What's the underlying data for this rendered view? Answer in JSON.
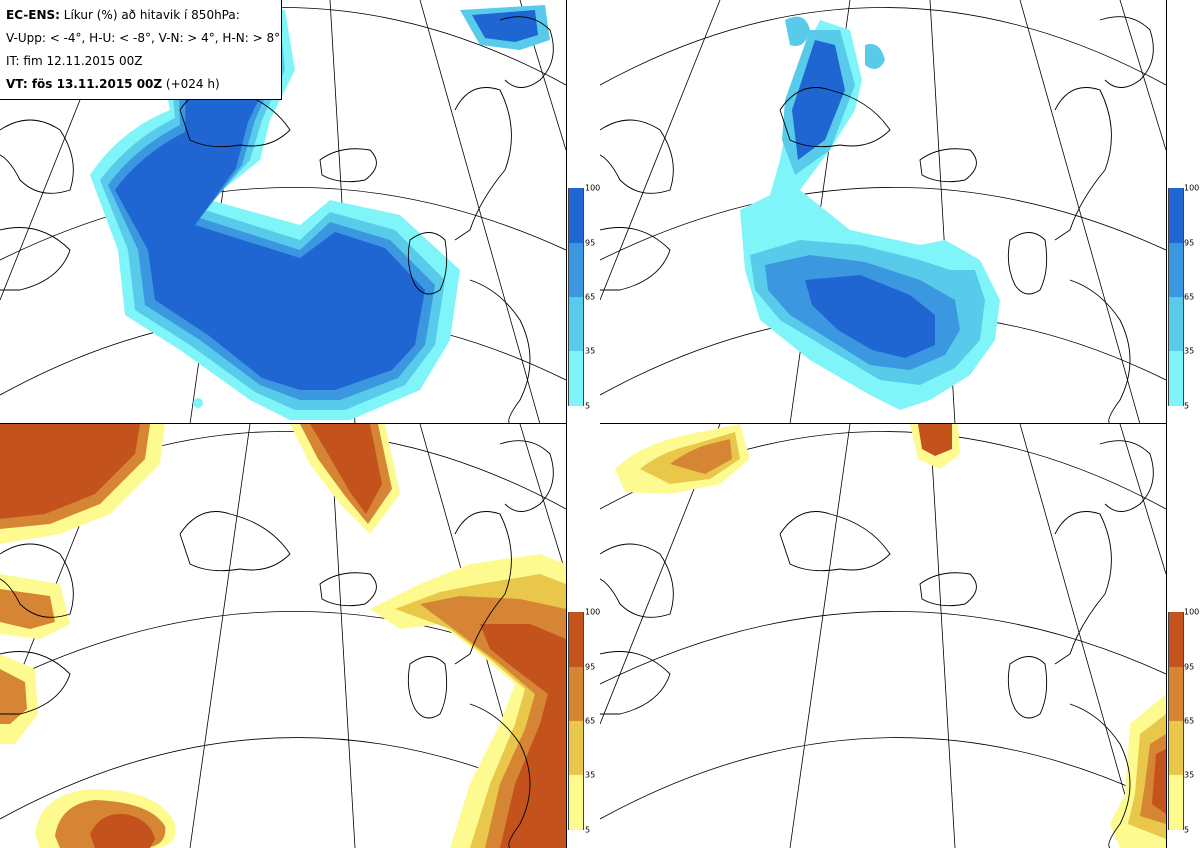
{
  "info": {
    "model": "EC-ENS:",
    "description": "Líkur (%) að hitavik í 850hPa:",
    "thresholds": "V-Upp: < -4°, H-U: < -8°, V-N: > 4°, H-N: > 8°",
    "initial_time": "IT: fim 12.11.2015 00Z",
    "valid_label": "VT:",
    "valid_time": "fös 13.11.2015 00Z",
    "lead": "(+024 h)"
  },
  "colorbar_ticks": [
    "100",
    "95",
    "65",
    "35",
    "5"
  ],
  "colors": {
    "cold": [
      "#7ff5f9",
      "#58cbeb",
      "#3a97e0",
      "#1f66d3"
    ],
    "warm": [
      "#fdfb8f",
      "#e8c74a",
      "#d68535",
      "#c4521c"
    ],
    "coast": "#000000",
    "grid": "#000000"
  }
}
